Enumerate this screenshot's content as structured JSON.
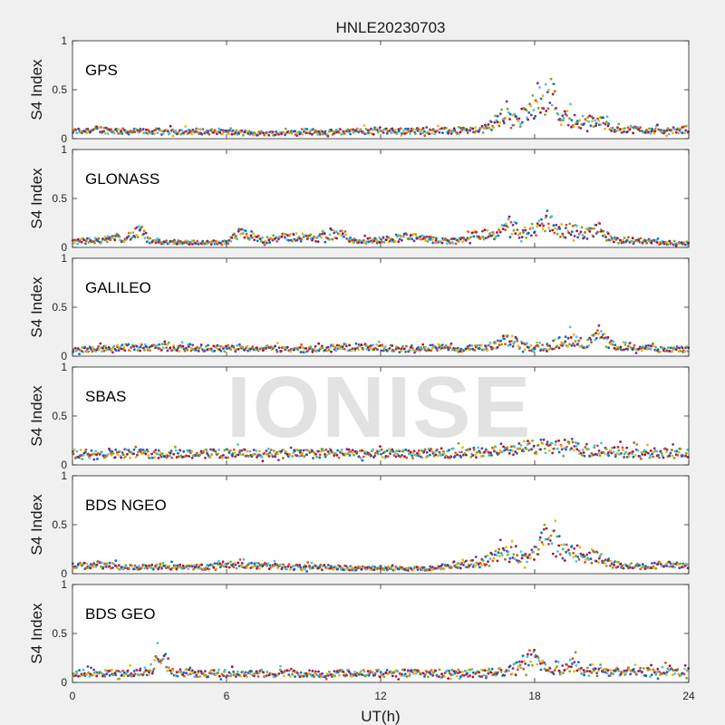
{
  "figure_title": "HNLE20230703",
  "watermark_text": "IONISE",
  "chart_data": {
    "type": "scatter",
    "title": "HNLE20230703",
    "xlabel": "UT(h)",
    "ylabel": "S4 Index",
    "xlim": [
      0,
      24
    ],
    "ylim": [
      0,
      1
    ],
    "x_ticks": [
      0,
      6,
      12,
      18,
      24
    ],
    "y_ticks": [
      0,
      0.5,
      1
    ],
    "x_tick_labels": [
      "0",
      "6",
      "12",
      "18",
      "24"
    ],
    "y_tick_labels": [
      "0",
      "0.5",
      "1"
    ],
    "grid": false,
    "legend": "none",
    "series_colors": [
      "#0072BD",
      "#D95319",
      "#EDB120",
      "#7E2F8E",
      "#77AC30",
      "#4DBEEE",
      "#A2142F"
    ],
    "panels": [
      {
        "label": "GPS",
        "values_profile": [
          [
            0,
            0.08
          ],
          [
            1,
            0.1
          ],
          [
            2,
            0.08
          ],
          [
            3,
            0.08
          ],
          [
            4,
            0.08
          ],
          [
            5,
            0.08
          ],
          [
            6,
            0.07
          ],
          [
            7,
            0.06
          ],
          [
            8,
            0.06
          ],
          [
            9,
            0.08
          ],
          [
            10,
            0.07
          ],
          [
            11,
            0.08
          ],
          [
            12,
            0.09
          ],
          [
            13,
            0.08
          ],
          [
            14,
            0.09
          ],
          [
            15,
            0.08
          ],
          [
            16,
            0.1
          ],
          [
            16.8,
            0.25
          ],
          [
            17.3,
            0.2
          ],
          [
            17.8,
            0.3
          ],
          [
            18.2,
            0.45
          ],
          [
            18.6,
            0.55
          ],
          [
            19.0,
            0.25
          ],
          [
            19.5,
            0.2
          ],
          [
            20,
            0.18
          ],
          [
            20.5,
            0.2
          ],
          [
            21,
            0.12
          ],
          [
            22,
            0.1
          ],
          [
            23,
            0.08
          ],
          [
            24,
            0.1
          ]
        ]
      },
      {
        "label": "GLONASS",
        "values_profile": [
          [
            0,
            0.06
          ],
          [
            1,
            0.08
          ],
          [
            2,
            0.1
          ],
          [
            2.7,
            0.18
          ],
          [
            3,
            0.06
          ],
          [
            4,
            0.06
          ],
          [
            5,
            0.05
          ],
          [
            6,
            0.05
          ],
          [
            6.5,
            0.15
          ],
          [
            7.5,
            0.08
          ],
          [
            8.5,
            0.12
          ],
          [
            9.5,
            0.1
          ],
          [
            10.5,
            0.15
          ],
          [
            11,
            0.07
          ],
          [
            12,
            0.08
          ],
          [
            13,
            0.12
          ],
          [
            14,
            0.08
          ],
          [
            15,
            0.07
          ],
          [
            15.8,
            0.15
          ],
          [
            16.5,
            0.12
          ],
          [
            17,
            0.25
          ],
          [
            17.5,
            0.15
          ],
          [
            18,
            0.2
          ],
          [
            18.5,
            0.3
          ],
          [
            19,
            0.18
          ],
          [
            19.5,
            0.2
          ],
          [
            20,
            0.15
          ],
          [
            20.5,
            0.2
          ],
          [
            21,
            0.08
          ],
          [
            22,
            0.08
          ],
          [
            23,
            0.05
          ],
          [
            24,
            0.05
          ]
        ]
      },
      {
        "label": "GALILEO",
        "values_profile": [
          [
            0,
            0.07
          ],
          [
            1,
            0.08
          ],
          [
            2,
            0.1
          ],
          [
            3,
            0.1
          ],
          [
            4,
            0.1
          ],
          [
            5,
            0.09
          ],
          [
            6,
            0.08
          ],
          [
            7,
            0.09
          ],
          [
            8,
            0.08
          ],
          [
            9,
            0.07
          ],
          [
            10,
            0.09
          ],
          [
            11,
            0.1
          ],
          [
            12,
            0.09
          ],
          [
            13,
            0.08
          ],
          [
            14,
            0.1
          ],
          [
            15,
            0.08
          ],
          [
            16,
            0.09
          ],
          [
            16.5,
            0.12
          ],
          [
            17,
            0.18
          ],
          [
            17.5,
            0.12
          ],
          [
            18,
            0.08
          ],
          [
            19,
            0.15
          ],
          [
            19.5,
            0.2
          ],
          [
            20,
            0.12
          ],
          [
            20.5,
            0.22
          ],
          [
            21,
            0.12
          ],
          [
            22,
            0.1
          ],
          [
            23,
            0.07
          ],
          [
            24,
            0.08
          ]
        ]
      },
      {
        "label": "SBAS",
        "values_profile": [
          [
            0,
            0.12
          ],
          [
            1,
            0.13
          ],
          [
            2,
            0.13
          ],
          [
            3,
            0.12
          ],
          [
            4,
            0.13
          ],
          [
            5,
            0.12
          ],
          [
            6,
            0.13
          ],
          [
            7,
            0.12
          ],
          [
            8,
            0.13
          ],
          [
            9,
            0.12
          ],
          [
            10,
            0.13
          ],
          [
            11,
            0.12
          ],
          [
            12,
            0.13
          ],
          [
            13,
            0.12
          ],
          [
            14,
            0.13
          ],
          [
            15,
            0.13
          ],
          [
            16,
            0.14
          ],
          [
            17,
            0.15
          ],
          [
            17.8,
            0.2
          ],
          [
            18.5,
            0.2
          ],
          [
            19.5,
            0.18
          ],
          [
            20.5,
            0.15
          ],
          [
            21.5,
            0.14
          ],
          [
            22.5,
            0.13
          ],
          [
            23.5,
            0.13
          ],
          [
            24,
            0.13
          ]
        ]
      },
      {
        "label": "BDS NGEO",
        "values_profile": [
          [
            0,
            0.08
          ],
          [
            1,
            0.1
          ],
          [
            2,
            0.07
          ],
          [
            3,
            0.07
          ],
          [
            4,
            0.08
          ],
          [
            5,
            0.07
          ],
          [
            6,
            0.1
          ],
          [
            7,
            0.09
          ],
          [
            8,
            0.08
          ],
          [
            9,
            0.07
          ],
          [
            10,
            0.07
          ],
          [
            11,
            0.06
          ],
          [
            12,
            0.06
          ],
          [
            13,
            0.05
          ],
          [
            14,
            0.06
          ],
          [
            15,
            0.1
          ],
          [
            16,
            0.12
          ],
          [
            16.5,
            0.2
          ],
          [
            17,
            0.22
          ],
          [
            17.5,
            0.18
          ],
          [
            18,
            0.2
          ],
          [
            18.5,
            0.45
          ],
          [
            19,
            0.25
          ],
          [
            19.5,
            0.22
          ],
          [
            20,
            0.2
          ],
          [
            20.5,
            0.18
          ],
          [
            21,
            0.1
          ],
          [
            22,
            0.08
          ],
          [
            23,
            0.1
          ],
          [
            24,
            0.08
          ]
        ]
      },
      {
        "label": "BDS GEO",
        "values_profile": [
          [
            0,
            0.1
          ],
          [
            1,
            0.1
          ],
          [
            2,
            0.1
          ],
          [
            3,
            0.12
          ],
          [
            3.4,
            0.3
          ],
          [
            4,
            0.11
          ],
          [
            5,
            0.1
          ],
          [
            6,
            0.1
          ],
          [
            7,
            0.1
          ],
          [
            8,
            0.1
          ],
          [
            9,
            0.1
          ],
          [
            10,
            0.1
          ],
          [
            11,
            0.1
          ],
          [
            12,
            0.1
          ],
          [
            13,
            0.1
          ],
          [
            14,
            0.1
          ],
          [
            15,
            0.1
          ],
          [
            16,
            0.1
          ],
          [
            17,
            0.12
          ],
          [
            17.5,
            0.22
          ],
          [
            18,
            0.3
          ],
          [
            18.5,
            0.15
          ],
          [
            19,
            0.12
          ],
          [
            19.5,
            0.2
          ],
          [
            20,
            0.12
          ],
          [
            21,
            0.12
          ],
          [
            22,
            0.12
          ],
          [
            23,
            0.12
          ],
          [
            24,
            0.12
          ]
        ]
      }
    ]
  }
}
